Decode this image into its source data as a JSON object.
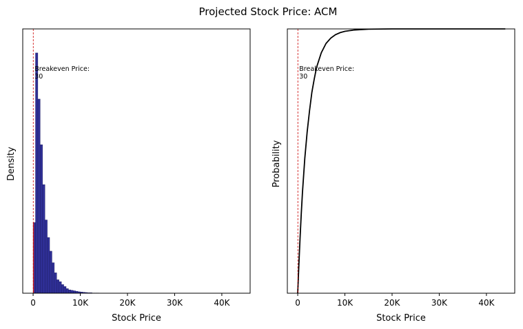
{
  "suptitle": "Projected Stock Price: ACM",
  "colors": {
    "bar_fill": "#2f2f96",
    "bar_edge": "#1a1a5e",
    "bar_below_breakeven": "#cc1f1f",
    "breakeven_line": "#cc0000",
    "cdf_line": "#000000"
  },
  "chart_data": [
    {
      "type": "bar",
      "subtype": "histogram",
      "title": "",
      "xlabel": "Stock Price",
      "ylabel": "Density",
      "y_ticks_shown": false,
      "grid": false,
      "xlim": [
        -2200,
        46000
      ],
      "x_ticks": [
        0,
        10000,
        20000,
        30000,
        40000
      ],
      "x_tick_labels": [
        "0",
        "10K",
        "20K",
        "30K",
        "40K"
      ],
      "bin_width": 500,
      "bin_start": 0,
      "values": [
        0.294,
        1.0,
        0.808,
        0.618,
        0.452,
        0.305,
        0.232,
        0.175,
        0.127,
        0.085,
        0.056,
        0.048,
        0.036,
        0.028,
        0.019,
        0.014,
        0.012,
        0.01,
        0.008,
        0.006,
        0.005,
        0.004,
        0.003,
        0.002,
        0.002,
        0.001,
        0.001,
        0.001
      ],
      "ylim": [
        0,
        1.1
      ],
      "annotation": {
        "type": "vline",
        "x": 30,
        "label": "Breakeven Price:\n30"
      }
    },
    {
      "type": "line",
      "subtype": "cdf",
      "title": "",
      "xlabel": "Stock Price",
      "ylabel": "Probability",
      "y_ticks_shown": false,
      "grid": false,
      "xlim": [
        -2200,
        46000
      ],
      "ylim": [
        0,
        1.0
      ],
      "x_ticks": [
        0,
        10000,
        20000,
        30000,
        40000
      ],
      "x_tick_labels": [
        "0",
        "10K",
        "20K",
        "30K",
        "40K"
      ],
      "x": [
        0,
        250,
        500,
        750,
        1000,
        1500,
        2000,
        2500,
        3000,
        3500,
        4000,
        5000,
        6000,
        7000,
        8000,
        9000,
        10000,
        12000,
        15000,
        20000,
        30000,
        40000,
        44000
      ],
      "y": [
        0.0,
        0.11,
        0.21,
        0.3,
        0.38,
        0.51,
        0.61,
        0.69,
        0.76,
        0.81,
        0.855,
        0.91,
        0.945,
        0.965,
        0.978,
        0.986,
        0.991,
        0.996,
        0.999,
        1.0,
        1.0,
        1.0,
        1.0
      ],
      "annotation": {
        "type": "vline",
        "x": 30,
        "label": "Breakeven Price:\n30"
      }
    }
  ]
}
